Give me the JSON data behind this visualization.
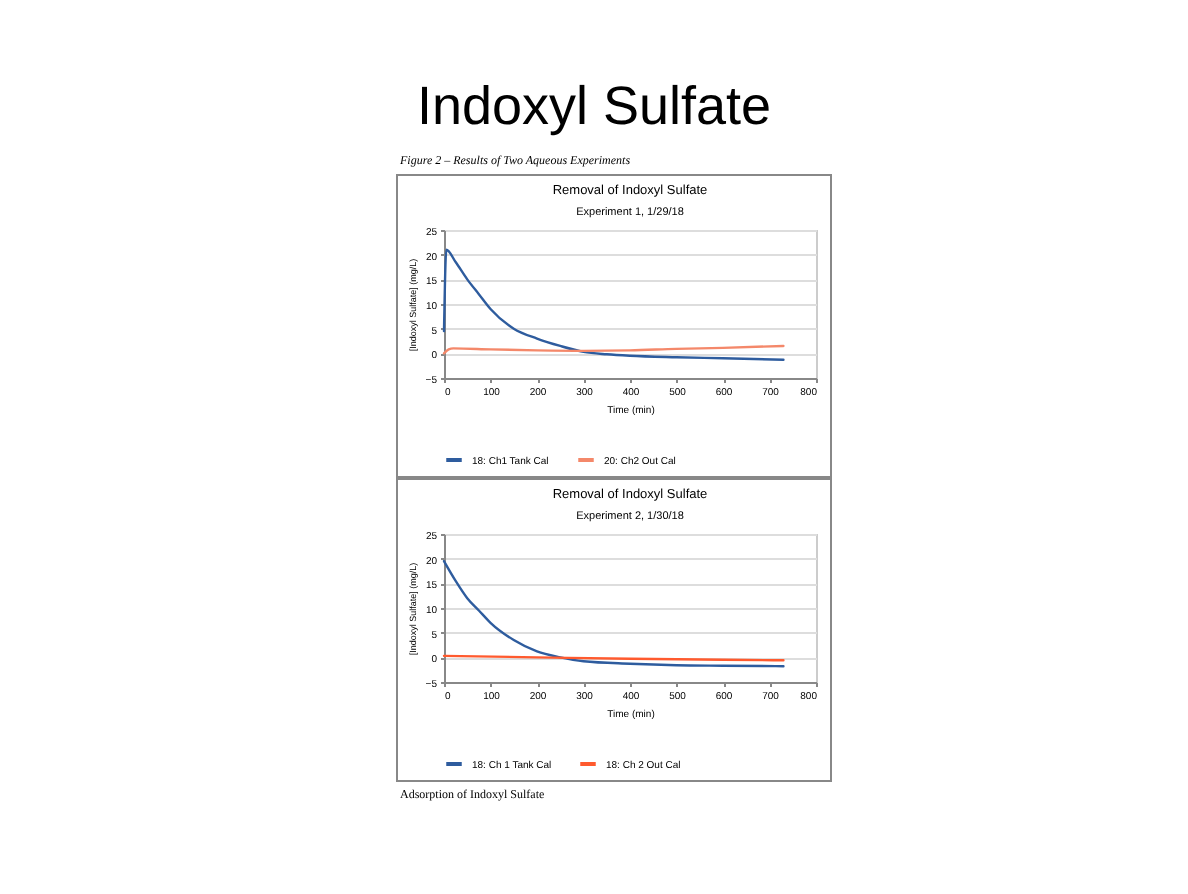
{
  "chart_data": [
    {
      "type": "line",
      "title": "Removal of Indoxyl Sulfate",
      "subtitle": "Experiment 1, 1/29/18",
      "xlabel": "Time (min)",
      "ylabel": "[Indoxyl Sulfate] (mg/L)",
      "annotations": [
        "Indoxyl Sulfate",
        "Figure 2 – Results of Two Aqueous Experiments"
      ],
      "xlim": [
        0,
        800
      ],
      "xticks": [
        0,
        100,
        200,
        300,
        400,
        500,
        600,
        700,
        800
      ],
      "ylim": [
        -5,
        25
      ],
      "yticks": [
        -5,
        0,
        5,
        10,
        15,
        20,
        25
      ],
      "grid": "y",
      "legend": "bottom",
      "series": [
        {
          "name": "18: Ch1 Tank Cal",
          "color": "#2e5c9e",
          "x": [
            0,
            5,
            25,
            50,
            75,
            100,
            150,
            200,
            250,
            300,
            350,
            400,
            500,
            600,
            730
          ],
          "values": [
            4.5,
            21,
            18.5,
            15,
            12,
            9,
            5,
            3,
            1.5,
            0.3,
            -0.2,
            -0.5,
            -0.8,
            -1,
            -1.3
          ]
        },
        {
          "name": "20: Ch2 Out Cal",
          "color": "#f4886a",
          "x": [
            0,
            10,
            20,
            100,
            200,
            300,
            400,
            500,
            600,
            730
          ],
          "values": [
            0,
            0.8,
            1,
            0.8,
            0.6,
            0.5,
            0.6,
            0.9,
            1.1,
            1.5
          ]
        }
      ]
    },
    {
      "type": "line",
      "title": "Removal of Indoxyl Sulfate",
      "subtitle": "Experiment 2, 1/30/18",
      "xlabel": "Time (min)",
      "ylabel": "[Indoxyl Sulfate] (mg/L)",
      "annotations": [
        "Adsorption of Indoxyl Sulfate"
      ],
      "xlim": [
        0,
        800
      ],
      "xticks": [
        0,
        100,
        200,
        300,
        400,
        500,
        600,
        700,
        800
      ],
      "ylim": [
        -5,
        25
      ],
      "yticks": [
        -5,
        0,
        5,
        10,
        15,
        20,
        25
      ],
      "grid": "y",
      "legend": "bottom",
      "series": [
        {
          "name": "18: Ch 1 Tank Cal",
          "color": "#2e5c9e",
          "x": [
            0,
            25,
            50,
            75,
            100,
            150,
            200,
            250,
            300,
            400,
            500,
            600,
            730
          ],
          "values": [
            19.5,
            15.5,
            12,
            9.5,
            7,
            3.5,
            1.2,
            0,
            -0.8,
            -1.3,
            -1.6,
            -1.7,
            -1.8
          ]
        },
        {
          "name": "18: Ch 2 Out Cal",
          "color": "#ff5a2e",
          "x": [
            0,
            200,
            400,
            600,
            730
          ],
          "values": [
            0.3,
            0,
            -0.3,
            -0.5,
            -0.6
          ]
        }
      ]
    }
  ]
}
